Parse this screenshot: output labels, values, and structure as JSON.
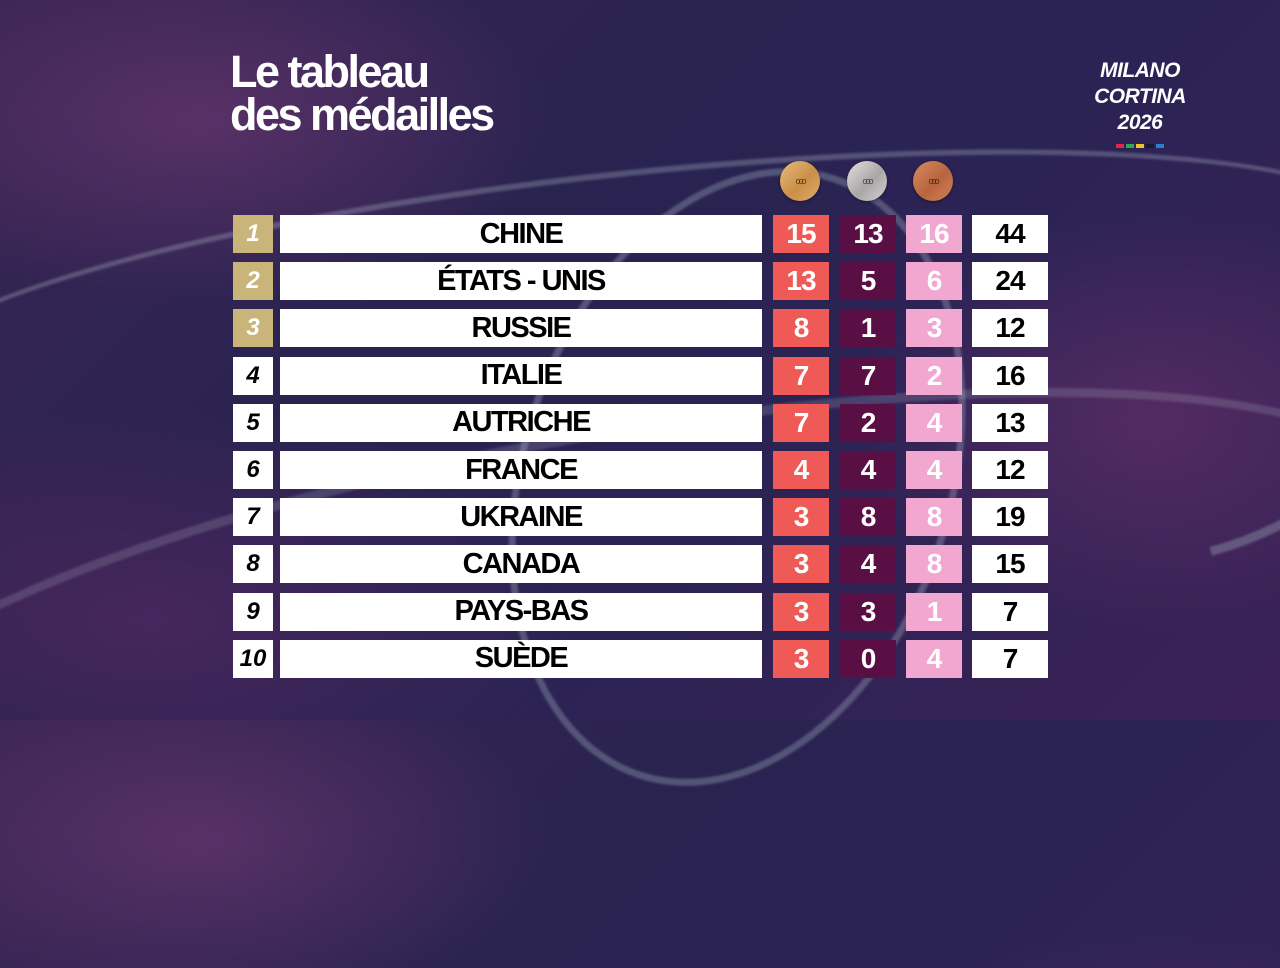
{
  "title": {
    "line1": "Le tableau",
    "line2": "des médailles"
  },
  "event": {
    "line1": "MILANO",
    "line2": "CORTINA",
    "line3": "2026",
    "color_bar": [
      "#e0284a",
      "#2fa84f",
      "#f2c230",
      "#1b1b2e",
      "#2c7fd0"
    ]
  },
  "colors": {
    "podium_rank_bg": "#c9b47a",
    "rank_bg": "#ffffff",
    "gold_bg": "#ef5a57",
    "silver_bg": "#5a0f44",
    "bronze_bg": "#f2a7d0",
    "total_bg": "#ffffff"
  },
  "medal_headers": [
    {
      "name": "gold-medal-icon",
      "color": "#d9a45c"
    },
    {
      "name": "silver-medal-icon",
      "color": "#c9c5c7"
    },
    {
      "name": "bronze-medal-icon",
      "color": "#c8764e"
    }
  ],
  "rows": [
    {
      "rank": "1",
      "country": "CHINE",
      "gold": "15",
      "silver": "13",
      "bronze": "16",
      "total": "44"
    },
    {
      "rank": "2",
      "country": "ÉTATS - UNIS",
      "gold": "13",
      "silver": "5",
      "bronze": "6",
      "total": "24"
    },
    {
      "rank": "3",
      "country": "RUSSIE",
      "gold": "8",
      "silver": "1",
      "bronze": "3",
      "total": "12"
    },
    {
      "rank": "4",
      "country": "ITALIE",
      "gold": "7",
      "silver": "7",
      "bronze": "2",
      "total": "16"
    },
    {
      "rank": "5",
      "country": "AUTRICHE",
      "gold": "7",
      "silver": "2",
      "bronze": "4",
      "total": "13"
    },
    {
      "rank": "6",
      "country": "FRANCE",
      "gold": "4",
      "silver": "4",
      "bronze": "4",
      "total": "12"
    },
    {
      "rank": "7",
      "country": "UKRAINE",
      "gold": "3",
      "silver": "8",
      "bronze": "8",
      "total": "19"
    },
    {
      "rank": "8",
      "country": "CANADA",
      "gold": "3",
      "silver": "4",
      "bronze": "8",
      "total": "15"
    },
    {
      "rank": "9",
      "country": "PAYS-BAS",
      "gold": "3",
      "silver": "3",
      "bronze": "1",
      "total": "7"
    },
    {
      "rank": "10",
      "country": "SUÈDE",
      "gold": "3",
      "silver": "0",
      "bronze": "4",
      "total": "7"
    }
  ]
}
